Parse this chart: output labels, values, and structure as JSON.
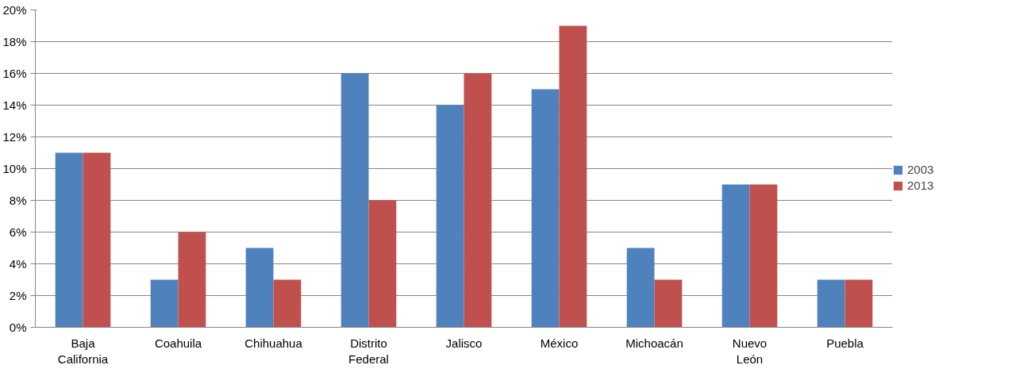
{
  "chart_data": {
    "type": "bar",
    "categories": [
      "Baja California",
      "Coahuila",
      "Chihuahua",
      "Distrito Federal",
      "Jalisco",
      "México",
      "Michoacán",
      "Nuevo León",
      "Puebla"
    ],
    "series": [
      {
        "name": "2003",
        "color": "#4f81bd",
        "values": [
          11,
          3,
          5,
          16,
          14,
          15,
          5,
          9,
          3
        ]
      },
      {
        "name": "2013",
        "color": "#c0504d",
        "values": [
          11,
          6,
          3,
          8,
          16,
          19,
          3,
          9,
          3
        ]
      }
    ],
    "ylim": [
      0,
      20
    ],
    "yticks": [
      {
        "value": 0,
        "label": "0%"
      },
      {
        "value": 2,
        "label": "2%"
      },
      {
        "value": 4,
        "label": "4%"
      },
      {
        "value": 6,
        "label": "6%"
      },
      {
        "value": 8,
        "label": "8%"
      },
      {
        "value": 10,
        "label": "10%"
      },
      {
        "value": 12,
        "label": "12%"
      },
      {
        "value": 14,
        "label": "14%"
      },
      {
        "value": 16,
        "label": "16%"
      },
      {
        "value": 18,
        "label": "18%"
      },
      {
        "value": 20,
        "label": "20%"
      }
    ],
    "grid": "y",
    "legend": "right"
  }
}
